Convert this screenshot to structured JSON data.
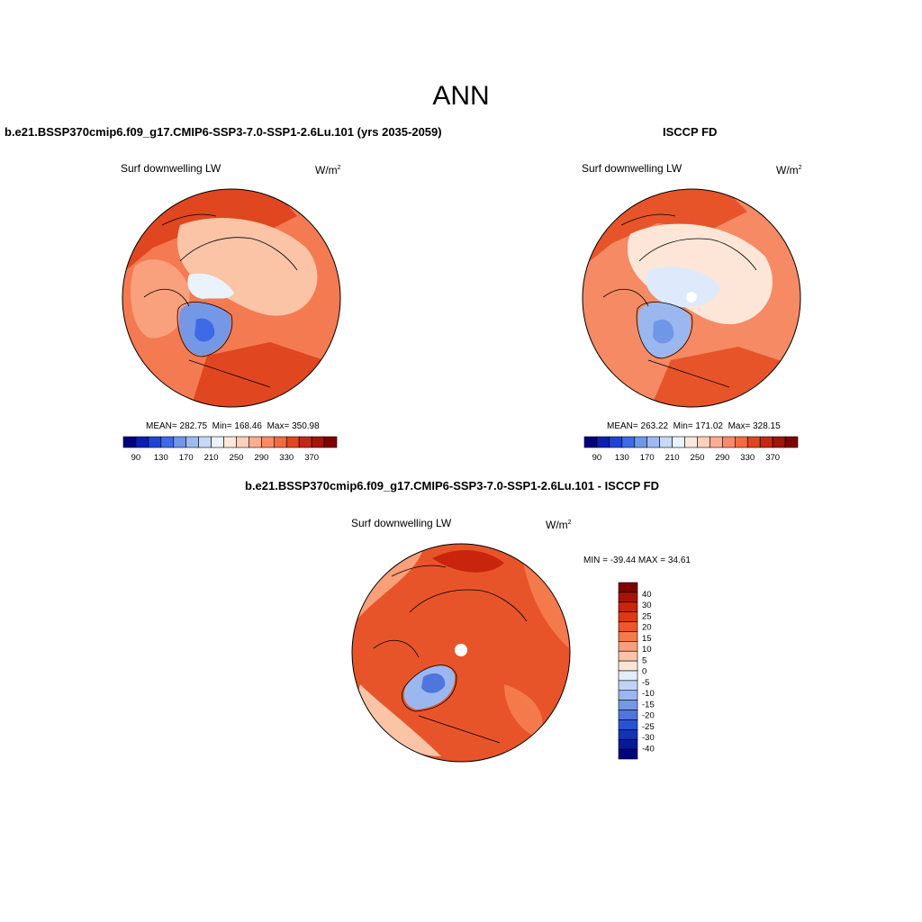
{
  "title": "ANN",
  "colors": {
    "ocean_warm": "#f26b43",
    "land_hot": "#d93a18",
    "cold": "#6f97e8",
    "pale": "#fde3d6",
    "coast": "#000000"
  },
  "panels": [
    {
      "title": "b.e21.BSSP370cmip6.f09_g17.CMIP6-SSP3-7.0-SSP1-2.6Lu.101 (yrs 2035-2059)",
      "variable": "Surf downwelling LW",
      "units_base": "W/m",
      "units_sup": "2",
      "stats": {
        "mean": "MEAN= 282.75",
        "min": "Min= 168.46",
        "max": "Max= 350.98"
      }
    },
    {
      "title": "ISCCP FD",
      "variable": "Surf downwelling LW",
      "units_base": "W/m",
      "units_sup": "2",
      "stats": {
        "mean": "MEAN= 263.22",
        "min": "Min= 171.02",
        "max": "Max= 328.15"
      }
    },
    {
      "title": "b.e21.BSSP370cmip6.f09_g17.CMIP6-SSP3-7.0-SSP1-2.6Lu.101 - ISCCP FD",
      "variable": "Surf downwelling LW",
      "units_base": "W/m",
      "units_sup": "2",
      "minmax": "MIN = -39.44 MAX =  34.61"
    }
  ],
  "horizontal_colorbar": {
    "colors": [
      "#00007f",
      "#0a1fb0",
      "#1f44d4",
      "#3f6ae6",
      "#6f97e8",
      "#9dbbf0",
      "#c6d9f6",
      "#eaf2fb",
      "#fde8dc",
      "#fdd0bb",
      "#fcae8e",
      "#f98a69",
      "#f26b43",
      "#e0461f",
      "#c42812",
      "#a21309",
      "#7f0000"
    ],
    "ticks": [
      "90",
      "130",
      "170",
      "210",
      "250",
      "290",
      "330",
      "370"
    ]
  },
  "vertical_colorbar": {
    "colors": [
      "#7f0000",
      "#a81307",
      "#c8250c",
      "#dd3a13",
      "#ee5728",
      "#f47a4c",
      "#f8a079",
      "#fbc4a6",
      "#fde6d7",
      "#e3eefb",
      "#bfd4f5",
      "#9ab8ef",
      "#7598e6",
      "#4f76dc",
      "#2a53cf",
      "#1233b8",
      "#031a99",
      "#00007f"
    ],
    "ticks": [
      "40",
      "30",
      "25",
      "20",
      "15",
      "10",
      "5",
      "0",
      "-5",
      "-10",
      "-15",
      "-20",
      "-25",
      "-30",
      "-40"
    ]
  }
}
